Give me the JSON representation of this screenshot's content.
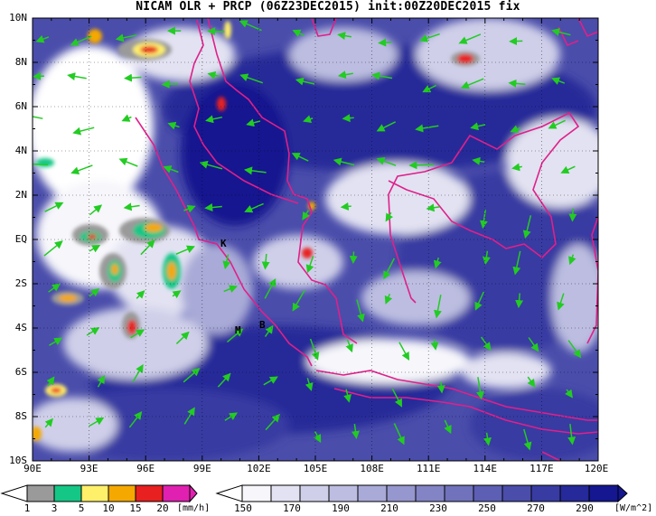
{
  "title": "NICAM OLR + PRCP (06Z23DEC2015) init:00Z20DEC2015 fix",
  "map": {
    "lat_labels": [
      "10N",
      "8N",
      "6N",
      "4N",
      "2N",
      "EQ",
      "2S",
      "4S",
      "6S",
      "8S",
      "10S"
    ],
    "lon_labels": [
      "90E",
      "93E",
      "96E",
      "99E",
      "102E",
      "105E",
      "108E",
      "111E",
      "114E",
      "117E",
      "120E"
    ],
    "lon_range": [
      90,
      120
    ],
    "lat_range": [
      -10,
      10
    ],
    "place_markers": [
      {
        "label": "K",
        "lon": 100.2,
        "lat": -0.2
      },
      {
        "label": "M",
        "lon": 100.8,
        "lat": -4.0
      },
      {
        "label": "B",
        "lon": 101.8,
        "lat": -3.8
      }
    ],
    "colors": {
      "land_outline": "#e0208a",
      "wind_vectors": "#22cc22",
      "ocean_cloud_base": "#ffffff"
    }
  },
  "precip_colorbar": {
    "colors": [
      "#9a9a9a",
      "#15c787",
      "#fff06a",
      "#f5a800",
      "#e82020",
      "#e020b0"
    ],
    "labels": [
      "1",
      "3",
      "5",
      "10",
      "15",
      "20"
    ],
    "unit": "[mm/h]"
  },
  "olr_colorbar": {
    "colors": [
      "#f6f6fb",
      "#e2e2f2",
      "#cfcfe9",
      "#bcbde0",
      "#a9aad7",
      "#9697ce",
      "#8384c5",
      "#7072bc",
      "#5c5fb3",
      "#4a4daa",
      "#383ba2",
      "#262999",
      "#141790"
    ],
    "labels": [
      "150",
      "170",
      "190",
      "210",
      "230",
      "250",
      "270",
      "290"
    ],
    "unit": "[W/m^2]"
  }
}
